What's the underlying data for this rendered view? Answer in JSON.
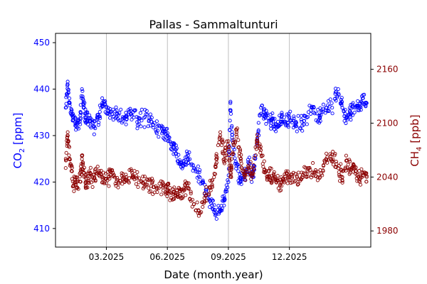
{
  "chart_data": {
    "type": "scatter",
    "title": "Pallas - Sammaltunturi",
    "xlabel": "Date (month.year)",
    "x_unit": "months since 2025-01-01",
    "xlim": [
      -0.5,
      15.0
    ],
    "x_ticks": [
      {
        "value": 2.0,
        "label": "03.2025"
      },
      {
        "value": 5.0,
        "label": "06.2025"
      },
      {
        "value": 8.0,
        "label": "09.2025"
      },
      {
        "value": 11.0,
        "label": "12.2025"
      }
    ],
    "vertical_gridlines": true,
    "series": [
      {
        "name": "CO2",
        "axis": "left",
        "ylabel": {
          "main": "CO",
          "sub": "2",
          "rest": " [ppm]"
        },
        "color": "#0000ff",
        "ylim": [
          406,
          452
        ],
        "y_ticks": [
          410,
          420,
          430,
          440,
          450
        ],
        "points": [
          [
            0.0,
            436
          ],
          [
            0.1,
            441
          ],
          [
            0.2,
            437
          ],
          [
            0.35,
            434
          ],
          [
            0.5,
            432
          ],
          [
            0.7,
            433
          ],
          [
            0.8,
            440
          ],
          [
            0.9,
            436
          ],
          [
            1.0,
            434
          ],
          [
            1.2,
            433
          ],
          [
            1.4,
            432
          ],
          [
            1.6,
            434
          ],
          [
            1.8,
            437
          ],
          [
            2.0,
            436
          ],
          [
            2.2,
            435
          ],
          [
            2.5,
            434
          ],
          [
            2.8,
            434
          ],
          [
            3.0,
            434
          ],
          [
            3.3,
            435
          ],
          [
            3.6,
            433
          ],
          [
            3.9,
            434
          ],
          [
            4.2,
            433
          ],
          [
            4.5,
            432
          ],
          [
            4.8,
            431
          ],
          [
            5.0,
            430
          ],
          [
            5.2,
            428
          ],
          [
            5.4,
            427
          ],
          [
            5.6,
            424
          ],
          [
            5.8,
            424
          ],
          [
            6.0,
            425
          ],
          [
            6.3,
            423
          ],
          [
            6.6,
            421
          ],
          [
            6.9,
            418
          ],
          [
            7.2,
            415
          ],
          [
            7.4,
            413
          ],
          [
            7.6,
            414
          ],
          [
            7.8,
            416
          ],
          [
            8.0,
            420
          ],
          [
            8.1,
            437
          ],
          [
            8.2,
            429
          ],
          [
            8.4,
            424
          ],
          [
            8.6,
            420
          ],
          [
            8.8,
            422
          ],
          [
            9.0,
            424
          ],
          [
            9.2,
            421
          ],
          [
            9.4,
            428
          ],
          [
            9.6,
            436
          ],
          [
            9.8,
            434
          ],
          [
            10.0,
            433
          ],
          [
            10.2,
            433
          ],
          [
            10.4,
            432
          ],
          [
            10.6,
            434
          ],
          [
            10.8,
            433
          ],
          [
            11.0,
            434
          ],
          [
            11.3,
            432
          ],
          [
            11.6,
            433
          ],
          [
            11.9,
            434
          ],
          [
            12.2,
            436
          ],
          [
            12.5,
            434
          ],
          [
            12.8,
            436
          ],
          [
            13.1,
            436
          ],
          [
            13.4,
            440
          ],
          [
            13.6,
            436
          ],
          [
            13.8,
            434
          ],
          [
            14.0,
            435
          ],
          [
            14.2,
            436
          ],
          [
            14.4,
            436
          ],
          [
            14.6,
            438
          ],
          [
            14.8,
            437
          ]
        ]
      },
      {
        "name": "CH4",
        "axis": "right",
        "ylabel": {
          "main": "CH",
          "sub": "4",
          "rest": " [ppb]"
        },
        "color": "#8b0000",
        "ylim": [
          1962,
          2200
        ],
        "y_ticks": [
          1980,
          2040,
          2100,
          2160
        ],
        "points": [
          [
            0.0,
            2050
          ],
          [
            0.1,
            2090
          ],
          [
            0.2,
            2060
          ],
          [
            0.35,
            2035
          ],
          [
            0.5,
            2032
          ],
          [
            0.7,
            2035
          ],
          [
            0.8,
            2060
          ],
          [
            0.9,
            2045
          ],
          [
            1.0,
            2035
          ],
          [
            1.2,
            2040
          ],
          [
            1.4,
            2038
          ],
          [
            1.6,
            2045
          ],
          [
            1.8,
            2040
          ],
          [
            2.0,
            2038
          ],
          [
            2.2,
            2042
          ],
          [
            2.5,
            2035
          ],
          [
            2.8,
            2038
          ],
          [
            3.0,
            2036
          ],
          [
            3.3,
            2040
          ],
          [
            3.6,
            2034
          ],
          [
            3.9,
            2035
          ],
          [
            4.2,
            2030
          ],
          [
            4.5,
            2028
          ],
          [
            4.8,
            2025
          ],
          [
            5.0,
            2025
          ],
          [
            5.2,
            2022
          ],
          [
            5.4,
            2020
          ],
          [
            5.6,
            2024
          ],
          [
            5.8,
            2026
          ],
          [
            6.0,
            2028
          ],
          [
            6.3,
            2010
          ],
          [
            6.6,
            2000
          ],
          [
            6.9,
            2020
          ],
          [
            7.2,
            2030
          ],
          [
            7.4,
            2060
          ],
          [
            7.6,
            2090
          ],
          [
            7.8,
            2060
          ],
          [
            8.0,
            2080
          ],
          [
            8.1,
            2040
          ],
          [
            8.2,
            2065
          ],
          [
            8.4,
            2090
          ],
          [
            8.6,
            2060
          ],
          [
            8.8,
            2040
          ],
          [
            9.0,
            2050
          ],
          [
            9.2,
            2045
          ],
          [
            9.4,
            2080
          ],
          [
            9.6,
            2070
          ],
          [
            9.8,
            2045
          ],
          [
            10.0,
            2040
          ],
          [
            10.2,
            2038
          ],
          [
            10.4,
            2036
          ],
          [
            10.6,
            2034
          ],
          [
            10.8,
            2038
          ],
          [
            11.0,
            2040
          ],
          [
            11.3,
            2036
          ],
          [
            11.6,
            2045
          ],
          [
            11.9,
            2050
          ],
          [
            12.2,
            2045
          ],
          [
            12.5,
            2040
          ],
          [
            12.8,
            2060
          ],
          [
            13.1,
            2065
          ],
          [
            13.4,
            2050
          ],
          [
            13.6,
            2040
          ],
          [
            13.8,
            2058
          ],
          [
            14.0,
            2048
          ],
          [
            14.2,
            2050
          ],
          [
            14.4,
            2040
          ],
          [
            14.6,
            2042
          ],
          [
            14.8,
            2040
          ]
        ]
      }
    ]
  }
}
